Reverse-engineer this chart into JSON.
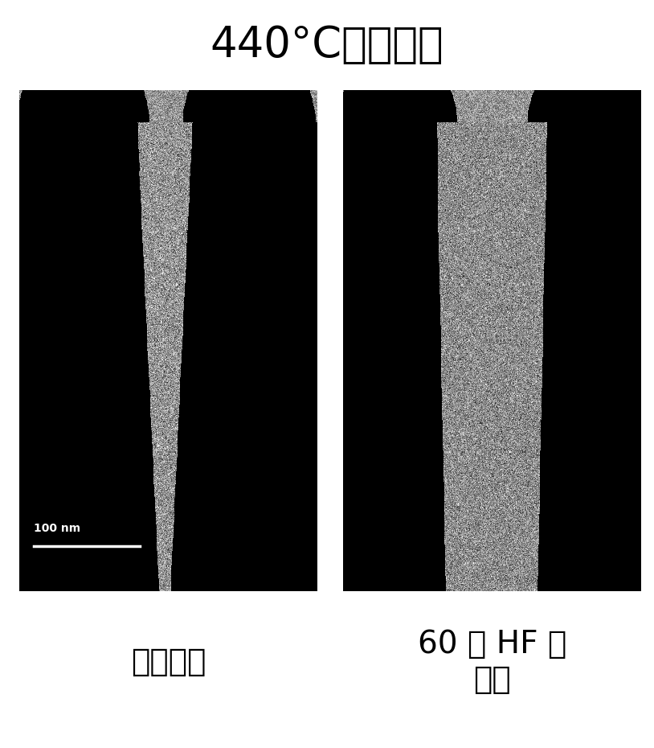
{
  "title": "440°C晶片温度",
  "title_fontsize": 38,
  "label_left": "刚沉积的",
  "label_right": "60 秒 HF 浸\n洸后",
  "label_fontsize": 28,
  "scalebar_text": "100 nm",
  "background_color": "#ffffff",
  "fig_width": 8.14,
  "fig_height": 9.3,
  "dpi": 100
}
